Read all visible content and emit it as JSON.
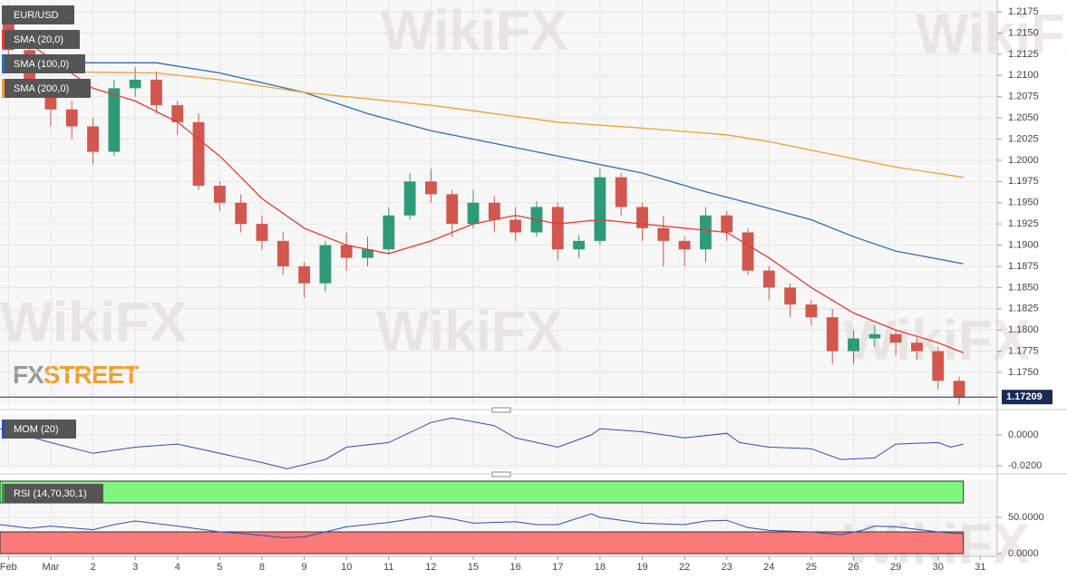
{
  "chart_data": [
    {
      "type": "candlestick",
      "title": "EUR/USD",
      "x": [
        0,
        0.5,
        1,
        1.5,
        2,
        2.5,
        3,
        3.5,
        4,
        4.5,
        5,
        5.5,
        6,
        6.5,
        7,
        7.5,
        8,
        8.5,
        9,
        9.5,
        10,
        10.5,
        11,
        11.5,
        12,
        12.5,
        13,
        13.5,
        14,
        14.5,
        15,
        15.5,
        16,
        16.5,
        17,
        17.5,
        18,
        18.5,
        19,
        19.5,
        20,
        20.5,
        21,
        21.5,
        22,
        22.5
      ],
      "open": [
        1.2165,
        1.213,
        1.2085,
        1.206,
        1.204,
        1.201,
        1.2085,
        1.2095,
        1.2065,
        1.2045,
        1.197,
        1.195,
        1.1925,
        1.1905,
        1.1875,
        1.1855,
        1.19,
        1.1885,
        1.1895,
        1.1935,
        1.1975,
        1.196,
        1.1925,
        1.195,
        1.193,
        1.1915,
        1.1945,
        1.1895,
        1.1905,
        1.198,
        1.1945,
        1.192,
        1.1905,
        1.1895,
        1.1935,
        1.1915,
        1.187,
        1.185,
        1.183,
        1.1815,
        1.1775,
        1.179,
        1.1795,
        1.1785,
        1.1775,
        1.174
      ],
      "high": [
        1.2175,
        1.2135,
        1.2095,
        1.207,
        1.205,
        1.2095,
        1.211,
        1.2105,
        1.207,
        1.2055,
        1.1975,
        1.196,
        1.1935,
        1.1915,
        1.188,
        1.1905,
        1.1915,
        1.191,
        1.1945,
        1.1985,
        1.199,
        1.1965,
        1.1965,
        1.1958,
        1.1945,
        1.1952,
        1.195,
        1.1912,
        1.199,
        1.1985,
        1.195,
        1.1935,
        1.191,
        1.1945,
        1.194,
        1.192,
        1.1875,
        1.1855,
        1.1835,
        1.1825,
        1.18,
        1.1805,
        1.18,
        1.179,
        1.178,
        1.1745
      ],
      "low": [
        1.212,
        1.2075,
        1.204,
        1.2025,
        1.1995,
        1.2005,
        1.2075,
        1.2055,
        1.203,
        1.1965,
        1.194,
        1.1915,
        1.1895,
        1.1865,
        1.1838,
        1.1845,
        1.187,
        1.1875,
        1.189,
        1.193,
        1.195,
        1.191,
        1.192,
        1.1915,
        1.1905,
        1.191,
        1.1882,
        1.1885,
        1.19,
        1.1935,
        1.1905,
        1.1875,
        1.1875,
        1.188,
        1.1905,
        1.1865,
        1.1835,
        1.1815,
        1.1805,
        1.176,
        1.176,
        1.178,
        1.177,
        1.1765,
        1.173,
        1.1712
      ],
      "close": [
        1.213,
        1.2085,
        1.206,
        1.204,
        1.201,
        1.2085,
        1.2095,
        1.2065,
        1.2045,
        1.197,
        1.195,
        1.1925,
        1.1905,
        1.1875,
        1.1855,
        1.19,
        1.1885,
        1.1895,
        1.1935,
        1.1975,
        1.196,
        1.1925,
        1.195,
        1.193,
        1.1915,
        1.1945,
        1.1895,
        1.1905,
        1.198,
        1.1945,
        1.192,
        1.1905,
        1.1895,
        1.1935,
        1.1915,
        1.187,
        1.185,
        1.183,
        1.1815,
        1.1775,
        1.179,
        1.1795,
        1.1785,
        1.1775,
        1.174,
        1.1721
      ],
      "up_color": "#2f9a78",
      "down_color": "#d2574e",
      "series": [
        {
          "name": "SMA (20,0)",
          "color": "#e53a2f",
          "x": [
            0,
            1,
            2,
            3,
            4,
            5,
            6,
            7,
            8,
            9,
            10,
            11,
            12,
            13,
            14,
            15,
            16,
            17,
            18,
            19,
            20,
            21,
            22,
            22.6
          ],
          "values": [
            1.2155,
            1.212,
            1.2085,
            1.207,
            1.2045,
            1.2005,
            1.1955,
            1.192,
            1.19,
            1.189,
            1.1905,
            1.1925,
            1.1935,
            1.1925,
            1.193,
            1.1925,
            1.192,
            1.1915,
            1.1885,
            1.185,
            1.182,
            1.18,
            1.1785,
            1.1773
          ]
        },
        {
          "name": "SMA (100,0)",
          "color": "#2f6db5",
          "x": [
            0,
            3.5,
            5,
            7,
            8.5,
            10,
            11.5,
            13,
            15,
            16.5,
            17.5,
            19,
            20,
            21,
            22.6
          ],
          "values": [
            1.2115,
            1.2115,
            1.2103,
            1.208,
            1.2055,
            1.2035,
            1.202,
            1.2005,
            1.1985,
            1.1963,
            1.195,
            1.193,
            1.191,
            1.1893,
            1.1878
          ]
        },
        {
          "name": "SMA (200,0)",
          "color": "#f0a030",
          "x": [
            0,
            3.5,
            5,
            7,
            10,
            13,
            15,
            17,
            18,
            19,
            20,
            21,
            22.6
          ],
          "values": [
            1.2105,
            1.2103,
            1.2095,
            1.208,
            1.2065,
            1.2045,
            1.2038,
            1.203,
            1.2022,
            1.2012,
            1.2002,
            1.1992,
            1.198
          ]
        }
      ],
      "last_price": 1.17209,
      "xlim": [
        -0.2,
        23.4
      ],
      "xticks": [
        {
          "value": 0,
          "label": "Feb"
        },
        {
          "value": 1,
          "label": "Mar"
        },
        {
          "value": 2,
          "label": "2"
        },
        {
          "value": 3,
          "label": "3"
        },
        {
          "value": 4,
          "label": "4"
        },
        {
          "value": 5,
          "label": "5"
        },
        {
          "value": 6,
          "label": "8"
        },
        {
          "value": 7,
          "label": "9"
        },
        {
          "value": 8,
          "label": "10"
        },
        {
          "value": 9,
          "label": "11"
        },
        {
          "value": 10,
          "label": "12"
        },
        {
          "value": 11,
          "label": "15"
        },
        {
          "value": 12,
          "label": "16"
        },
        {
          "value": 13,
          "label": "17"
        },
        {
          "value": 14,
          "label": "18"
        },
        {
          "value": 15,
          "label": "19"
        },
        {
          "value": 16,
          "label": "22"
        },
        {
          "value": 17,
          "label": "23"
        },
        {
          "value": 18,
          "label": "24"
        },
        {
          "value": 19,
          "label": "25"
        },
        {
          "value": 20,
          "label": "26"
        },
        {
          "value": 21,
          "label": "29"
        },
        {
          "value": 22,
          "label": "30"
        },
        {
          "value": 23,
          "label": "31"
        }
      ],
      "ylim": [
        1.17115,
        1.2189
      ],
      "yticks": [
        1.2175,
        {
          "value": 1.215,
          "label": "1.2150"
        },
        1.2125,
        {
          "value": 1.21,
          "label": "1.2100"
        },
        1.2075,
        {
          "value": 1.205,
          "label": "1.2050"
        },
        1.2025,
        {
          "value": 1.2,
          "label": "1.2000"
        },
        1.1975,
        {
          "value": 1.195,
          "label": "1.1950"
        },
        1.1925,
        {
          "value": 1.19,
          "label": "1.1900"
        },
        1.1875,
        {
          "value": 1.185,
          "label": "1.1850"
        },
        1.1825,
        {
          "value": 1.18,
          "label": "1.1800"
        },
        1.1775,
        {
          "value": 1.175,
          "label": "1.1750"
        }
      ],
      "grid": true,
      "logo": [
        "FX",
        "STREET"
      ],
      "watermark": "WikiFX"
    },
    {
      "type": "line",
      "title": "MOM (20)",
      "color": "#2b4fb8",
      "x": [
        -0.2,
        1,
        2,
        3,
        4,
        5,
        6,
        6.6,
        7.5,
        8,
        9,
        10,
        10.5,
        11.5,
        12,
        13,
        13.8,
        14,
        15,
        16,
        17,
        17.3,
        18,
        19,
        19.7,
        20.5,
        21,
        22,
        22.3,
        22.6
      ],
      "values": [
        0.004,
        -0.005,
        -0.012,
        -0.008,
        -0.006,
        -0.012,
        -0.018,
        -0.022,
        -0.016,
        -0.008,
        -0.005,
        0.008,
        0.011,
        0.006,
        -0.002,
        -0.008,
        0.0,
        0.004,
        0.002,
        -0.002,
        0.001,
        -0.005,
        -0.008,
        -0.009,
        -0.016,
        -0.015,
        -0.006,
        -0.005,
        -0.008,
        -0.006
      ],
      "ylim": [
        -0.0224,
        0.0135
      ],
      "yticks": [
        {
          "value": 0,
          "label": "0.0000"
        },
        {
          "value": -0.02,
          "label": "-0.0200"
        }
      ],
      "grid": true
    },
    {
      "type": "line",
      "title": "RSI (14,70,30,1)",
      "color": "#2b4fb8",
      "x": [
        -0.2,
        0.5,
        1,
        2,
        2.5,
        3,
        4,
        5,
        5.5,
        6,
        6.5,
        7,
        7.5,
        8,
        9,
        10,
        10.5,
        11,
        12,
        12.5,
        13,
        13.8,
        14,
        15,
        16,
        16.5,
        17,
        17.5,
        18,
        19,
        19.7,
        20.2,
        20.5,
        21,
        22,
        22.6
      ],
      "values": [
        40,
        35,
        38,
        33,
        40,
        45,
        38,
        30,
        28,
        25,
        22,
        23,
        30,
        37,
        43,
        52,
        48,
        42,
        44,
        40,
        40,
        55,
        50,
        42,
        40,
        45,
        46,
        36,
        32,
        30,
        26,
        32,
        38,
        37,
        30,
        27
      ],
      "overbought": 70,
      "oversold": 30,
      "ylim": [
        0,
        100
      ],
      "yticks": [
        {
          "value": 50,
          "label": "50.0000"
        },
        {
          "value": 0,
          "label": "0.0000"
        }
      ],
      "grid": true
    }
  ]
}
